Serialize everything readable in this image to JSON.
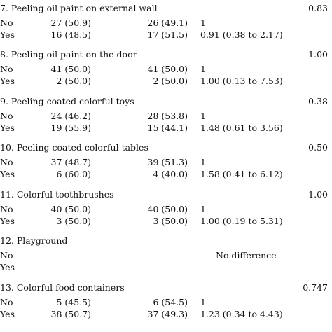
{
  "sections": [
    {
      "title": "7. Peeling oil paint on external wall",
      "p": "0.83",
      "no": {
        "label": "No",
        "c1": "27 (50.9)",
        "c2": "26 (49.1)",
        "or": "1"
      },
      "yes": {
        "label": "Yes",
        "c1": "16 (48.5)",
        "c2": "17 (51.5)",
        "or": "0.91 (0.38 to 2.17)"
      }
    },
    {
      "title": "8. Peeling oil paint on the door",
      "p": "1.00",
      "no": {
        "label": "No",
        "c1": "41 (50.0)",
        "c2": "41 (50.0)",
        "or": "1"
      },
      "yes": {
        "label": "Yes",
        "c1": "2 (50.0)",
        "c2": "2 (50.0)",
        "or": "1.00 (0.13 to 7.53)"
      }
    },
    {
      "title": "9. Peeling coated colorful toys",
      "p": "0.38",
      "no": {
        "label": "No",
        "c1": "24 (46.2)",
        "c2": "28 (53.8)",
        "or": "1"
      },
      "yes": {
        "label": "Yes",
        "c1": "19 (55.9)",
        "c2": "15 (44.1)",
        "or": "1.48 (0.61 to 3.56)"
      }
    },
    {
      "title": "10. Peeling coated colorful tables",
      "p": "0.50",
      "no": {
        "label": "No",
        "c1": "37 (48.7)",
        "c2": "39 (51.3)",
        "or": "1"
      },
      "yes": {
        "label": "Yes",
        "c1": "6 (60.0)",
        "c2": "4 (40.0)",
        "or": "1.58 (0.41 to 6.12)"
      }
    },
    {
      "title": "11. Colorful toothbrushes",
      "p": "1.00",
      "no": {
        "label": "No",
        "c1": "40 (50.0)",
        "c2": "40 (50.0)",
        "or": "1"
      },
      "yes": {
        "label": "Yes",
        "c1": "3 (50.0)",
        "c2": "3 (50.0)",
        "or": "1.00 (0.19 to 5.31)"
      }
    },
    {
      "title": "12. Playground",
      "p": "",
      "no": {
        "label": "No",
        "c1": "-",
        "c2": "-",
        "or": "No difference"
      },
      "yes": {
        "label": "Yes",
        "c1": "",
        "c2": "",
        "or": ""
      }
    },
    {
      "title": "13. Colorful food containers",
      "p": "0.747",
      "no": {
        "label": "No",
        "c1": "5 (45.5)",
        "c2": "6 (54.5)",
        "or": "1"
      },
      "yes": {
        "label": "Yes",
        "c1": "38 (50.7)",
        "c2": "37 (49.3)",
        "or": "1.23 (0.34 to 4.43)"
      }
    }
  ]
}
